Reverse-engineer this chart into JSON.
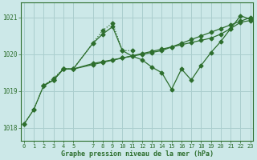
{
  "background_color": "#cce8e8",
  "grid_color": "#aacece",
  "line_color": "#2d6e2d",
  "title": "Graphe pression niveau de la mer (hPa)",
  "ylim": [
    1017.65,
    1021.4
  ],
  "yticks": [
    1018,
    1019,
    1020,
    1021
  ],
  "xlim": [
    -0.3,
    23.3
  ],
  "xticks": [
    0,
    1,
    2,
    3,
    4,
    5,
    7,
    8,
    9,
    10,
    11,
    12,
    13,
    14,
    15,
    16,
    17,
    18,
    19,
    20,
    21,
    22,
    23
  ],
  "series": [
    {
      "x": [
        0,
        1,
        2,
        3,
        4,
        5,
        7,
        8,
        9,
        10,
        11
      ],
      "y": [
        1018.1,
        1018.5,
        1019.15,
        1019.35,
        1019.6,
        1019.6,
        1020.3,
        1020.65,
        1020.85,
        1020.1,
        1020.1
      ],
      "linestyle": "dotted",
      "marker": "D",
      "markersize": 2.5
    },
    {
      "x": [
        2,
        3,
        4,
        5,
        7,
        8,
        9,
        10,
        11,
        12,
        13,
        14,
        15,
        16,
        17,
        18,
        19,
        20,
        21,
        22,
        23
      ],
      "y": [
        1019.15,
        1019.3,
        1019.6,
        1019.6,
        1019.75,
        1019.8,
        1019.85,
        1019.9,
        1019.95,
        1020.0,
        1020.05,
        1020.1,
        1020.2,
        1020.3,
        1020.4,
        1020.5,
        1020.6,
        1020.7,
        1020.8,
        1020.9,
        1021.0
      ],
      "linestyle": "solid",
      "marker": "D",
      "markersize": 2.5
    },
    {
      "x": [
        2,
        3,
        4,
        5,
        7,
        8,
        9,
        10,
        11,
        12,
        13,
        14,
        15,
        16,
        17,
        18,
        19,
        20,
        21,
        22,
        23
      ],
      "y": [
        1019.15,
        1019.3,
        1019.6,
        1019.6,
        1020.3,
        1020.55,
        1020.75,
        1020.1,
        1019.95,
        1019.85,
        1019.65,
        1019.5,
        1019.05,
        1019.6,
        1019.3,
        1019.7,
        1020.05,
        1020.35,
        1020.7,
        1021.05,
        1020.95
      ],
      "linestyle": "solid",
      "marker": "D",
      "markersize": 2.5
    },
    {
      "x": [
        0,
        1,
        2,
        3,
        4,
        5,
        7,
        8,
        9,
        10,
        11,
        12,
        13,
        14,
        15,
        16,
        17,
        18,
        19,
        20,
        21,
        22,
        23
      ],
      "y": [
        1018.1,
        1018.5,
        1019.15,
        1019.3,
        1019.6,
        1019.6,
        1019.72,
        1019.78,
        1019.84,
        1019.9,
        1019.96,
        1020.02,
        1020.08,
        1020.14,
        1020.2,
        1020.26,
        1020.32,
        1020.38,
        1020.44,
        1020.55,
        1020.7,
        1020.87,
        1020.92
      ],
      "linestyle": "solid",
      "marker": "D",
      "markersize": 2.5
    }
  ]
}
